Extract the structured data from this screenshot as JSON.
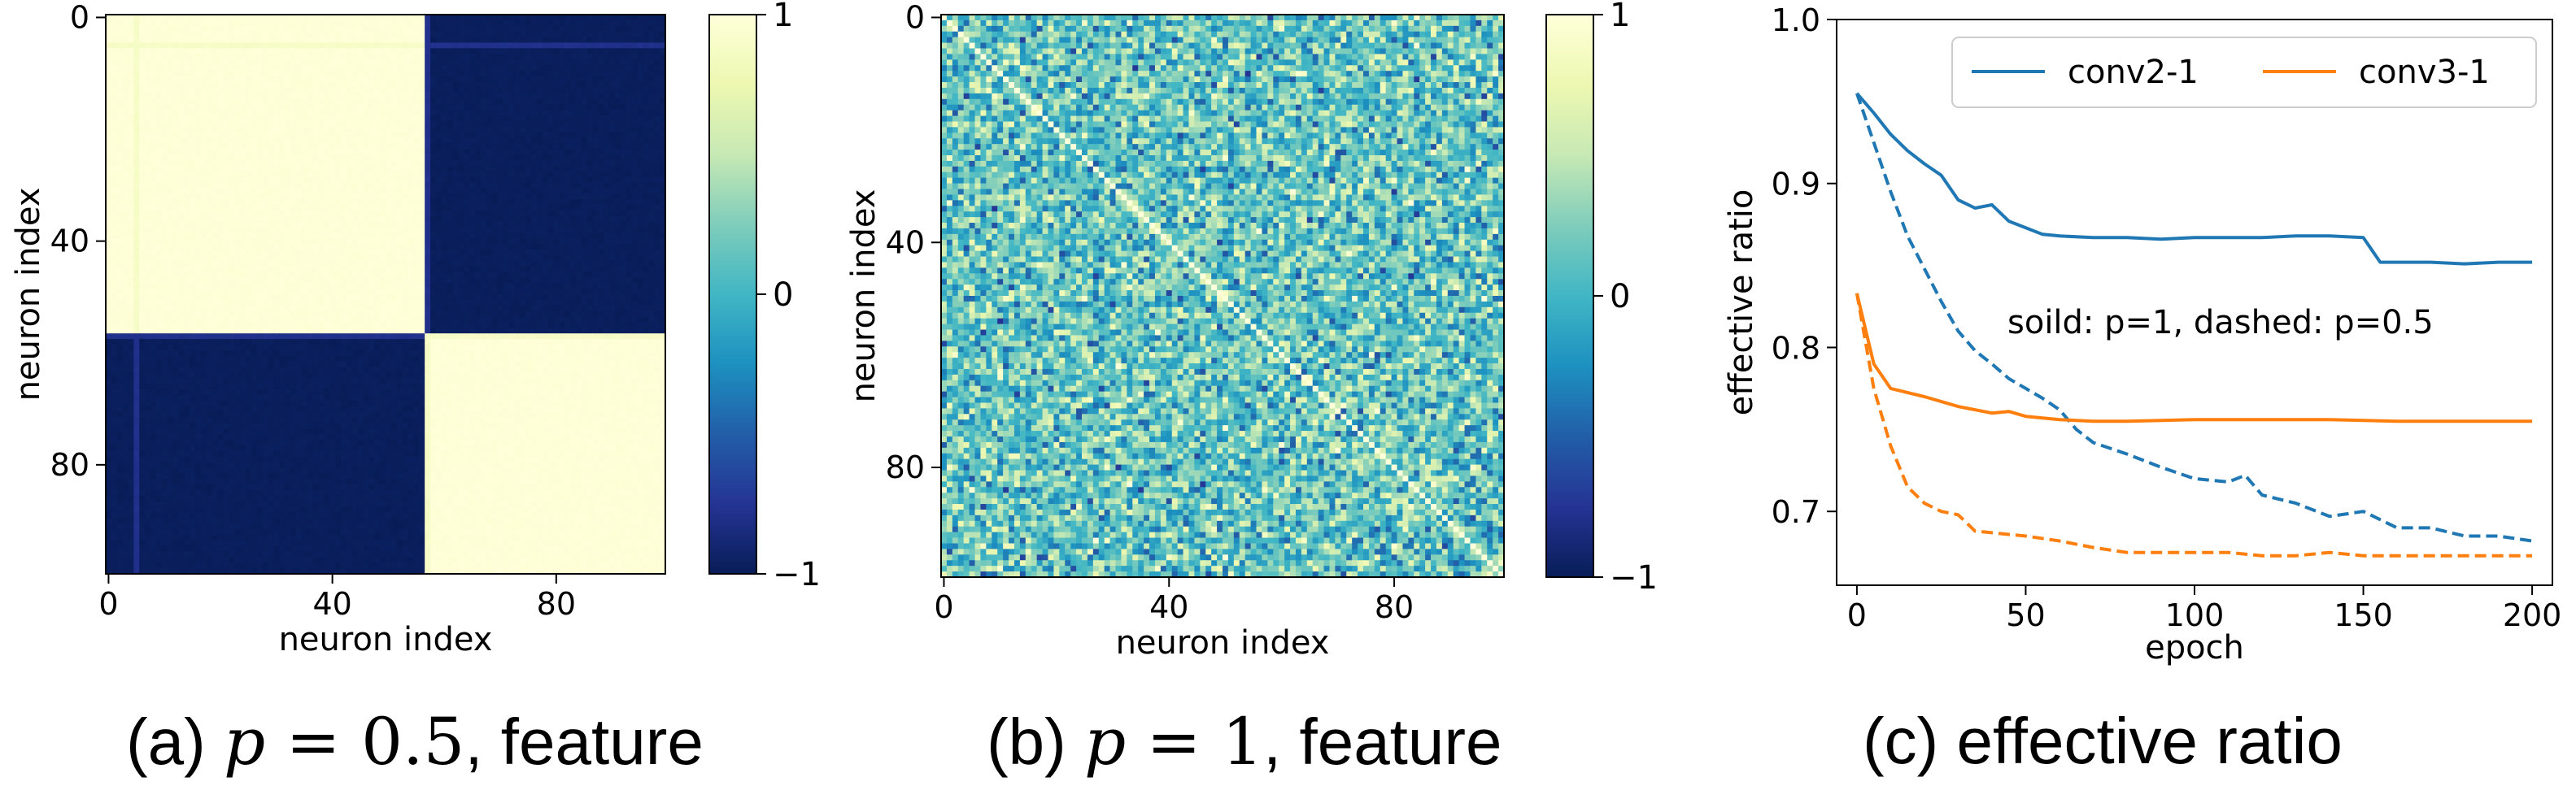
{
  "chart_data": [
    {
      "type": "heatmap",
      "panel": "a",
      "caption": {
        "prefix": "(a) ",
        "math": "p",
        "eq": " = ",
        "value": "0.5",
        "suffix": ", feature"
      },
      "xlabel": "neuron index",
      "ylabel": "neuron index",
      "size": 100,
      "xticks": [
        0,
        40,
        80
      ],
      "yticks": [
        0,
        40,
        80
      ],
      "colorbar": {
        "min": -1,
        "max": 1,
        "ticks": [
          1,
          0,
          -1
        ],
        "tick_labels": [
          "1",
          "0",
          "−1"
        ]
      },
      "structure": {
        "block_split_index": 57,
        "within_block_value": 1,
        "between_block_value": -1,
        "faint_line_indices": [
          5,
          57
        ]
      }
    },
    {
      "type": "heatmap",
      "panel": "b",
      "caption": {
        "prefix": "(b) ",
        "math": "p",
        "eq": " = ",
        "value": "1",
        "suffix": ", feature"
      },
      "xlabel": "neuron index",
      "ylabel": "neuron index",
      "size": 100,
      "xticks": [
        0,
        40,
        80
      ],
      "yticks": [
        0,
        40,
        80
      ],
      "colorbar": {
        "min": -1,
        "max": 1,
        "ticks": [
          1,
          0,
          -1
        ],
        "tick_labels": [
          "1",
          "0",
          "−1"
        ]
      },
      "structure": {
        "diagonal_value": 1,
        "off_diagonal_mean": 0.15,
        "off_diagonal_spread": 0.45
      }
    },
    {
      "type": "line",
      "panel": "c",
      "caption": {
        "text": "(c) effective ratio"
      },
      "xlabel": "epoch",
      "ylabel": "effective ratio",
      "xlim": [
        -6,
        206
      ],
      "ylim": [
        0.655,
        1.0
      ],
      "xticks": [
        0,
        50,
        100,
        150,
        200
      ],
      "yticks": [
        0.7,
        0.8,
        0.9,
        1.0
      ],
      "ytick_labels": [
        "0.7",
        "0.8",
        "0.9",
        "1.0"
      ],
      "annotation": "soild: p=1, dashed: p=0.5",
      "legend_position": "top",
      "series": [
        {
          "name": "conv2-1",
          "color": "#1f77b4",
          "style": "solid",
          "x": [
            0,
            5,
            10,
            15,
            20,
            25,
            30,
            35,
            40,
            45,
            50,
            55,
            60,
            70,
            80,
            90,
            100,
            110,
            120,
            130,
            140,
            150,
            155,
            160,
            170,
            180,
            190,
            200
          ],
          "y": [
            0.955,
            0.943,
            0.93,
            0.92,
            0.912,
            0.905,
            0.89,
            0.885,
            0.887,
            0.877,
            0.873,
            0.869,
            0.868,
            0.867,
            0.867,
            0.866,
            0.867,
            0.867,
            0.867,
            0.868,
            0.868,
            0.867,
            0.852,
            0.852,
            0.852,
            0.851,
            0.852,
            0.852
          ]
        },
        {
          "name": "conv2-1",
          "color": "#1f77b4",
          "style": "dashed",
          "x": [
            0,
            5,
            10,
            15,
            20,
            25,
            30,
            35,
            40,
            45,
            50,
            55,
            60,
            65,
            70,
            80,
            90,
            100,
            110,
            115,
            120,
            130,
            140,
            150,
            160,
            170,
            180,
            190,
            200
          ],
          "y": [
            0.955,
            0.925,
            0.895,
            0.868,
            0.848,
            0.828,
            0.81,
            0.798,
            0.79,
            0.781,
            0.775,
            0.769,
            0.762,
            0.75,
            0.742,
            0.735,
            0.727,
            0.72,
            0.718,
            0.722,
            0.71,
            0.705,
            0.697,
            0.7,
            0.69,
            0.69,
            0.685,
            0.685,
            0.682
          ]
        },
        {
          "name": "conv3-1",
          "color": "#ff7f0e",
          "style": "solid",
          "x": [
            0,
            5,
            10,
            20,
            30,
            40,
            45,
            50,
            60,
            70,
            80,
            100,
            120,
            140,
            160,
            180,
            200
          ],
          "y": [
            0.833,
            0.79,
            0.775,
            0.77,
            0.764,
            0.76,
            0.761,
            0.758,
            0.756,
            0.755,
            0.755,
            0.756,
            0.756,
            0.756,
            0.755,
            0.755,
            0.755
          ]
        },
        {
          "name": "conv3-1",
          "color": "#ff7f0e",
          "style": "dashed",
          "x": [
            0,
            5,
            10,
            15,
            20,
            25,
            30,
            35,
            40,
            50,
            60,
            70,
            80,
            90,
            100,
            110,
            120,
            130,
            140,
            150,
            160,
            170,
            180,
            190,
            200
          ],
          "y": [
            0.833,
            0.775,
            0.74,
            0.715,
            0.705,
            0.7,
            0.698,
            0.688,
            0.687,
            0.685,
            0.682,
            0.678,
            0.675,
            0.675,
            0.675,
            0.675,
            0.673,
            0.673,
            0.675,
            0.673,
            0.673,
            0.673,
            0.673,
            0.673,
            0.673
          ]
        }
      ],
      "legend": [
        {
          "label": "conv2-1",
          "color": "#1f77b4"
        },
        {
          "label": "conv3-1",
          "color": "#ff7f0e"
        }
      ]
    }
  ]
}
